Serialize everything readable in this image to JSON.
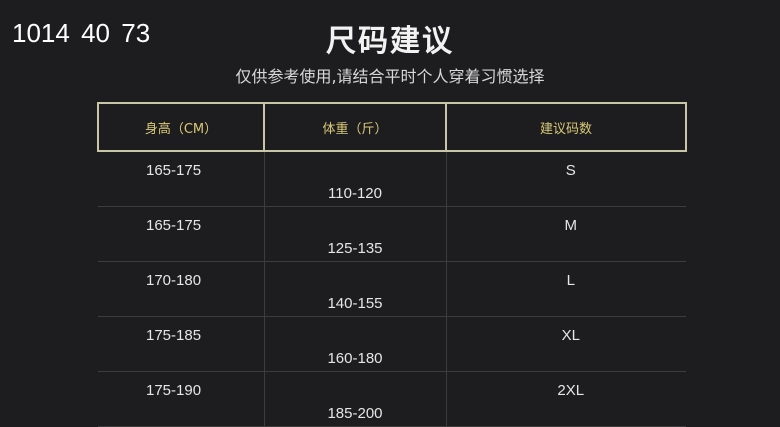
{
  "watermark": {
    "main": "1014",
    "overlap1": "40",
    "overlap2": "73"
  },
  "title": "尺码建议",
  "subtitle": "仅供参考使用,请结合平时个人穿着习惯选择",
  "table": {
    "headers": [
      "身高（CM）",
      "体重（斤）",
      "建议码数"
    ],
    "rows": [
      [
        "165-175",
        "110-120",
        "S"
      ],
      [
        "165-175",
        "125-135",
        "M"
      ],
      [
        "170-180",
        "140-155",
        "L"
      ],
      [
        "175-185",
        "160-180",
        "XL"
      ],
      [
        "175-190",
        "185-200",
        "2XL"
      ]
    ]
  },
  "colors": {
    "background": "#1d1d1f",
    "header_text": "#d9c977",
    "header_border": "#c9c6a8"
  }
}
